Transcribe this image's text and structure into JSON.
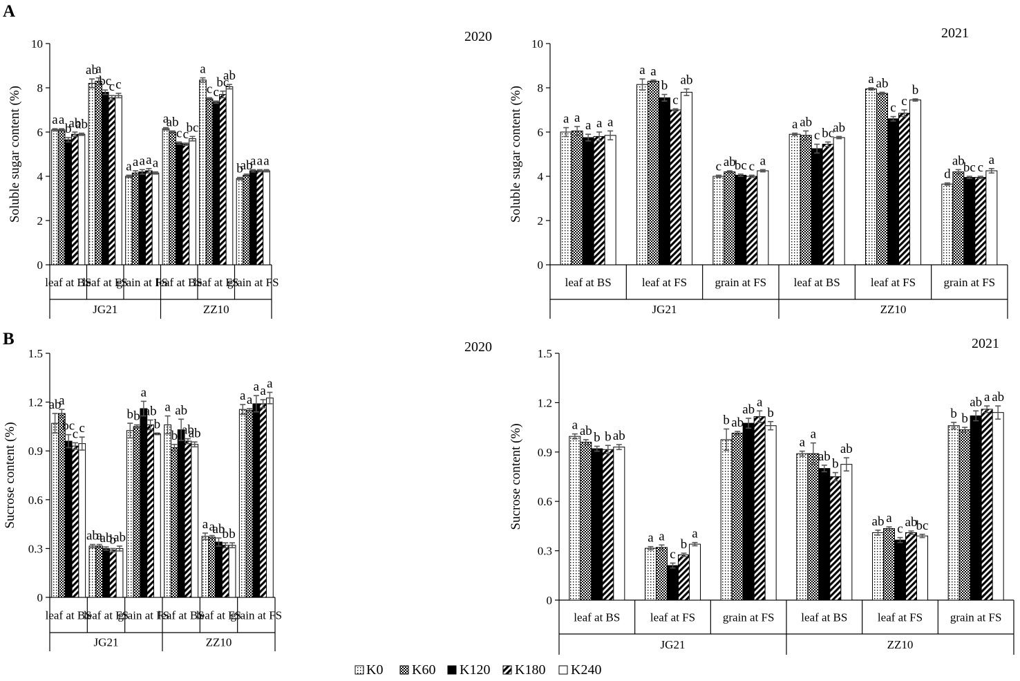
{
  "figure": {
    "panel_labels": [
      "A",
      "B"
    ],
    "legend": [
      {
        "key": "K0",
        "label": "K0",
        "pattern": "dots"
      },
      {
        "key": "K60",
        "label": "K60",
        "pattern": "checker"
      },
      {
        "key": "K120",
        "label": "K120",
        "pattern": "solid"
      },
      {
        "key": "K180",
        "label": "K180",
        "pattern": "diagonal"
      },
      {
        "key": "K240",
        "label": "K240",
        "pattern": "white"
      }
    ],
    "colors": {
      "ink": "#000000",
      "error_bar": "#555555",
      "background": "#ffffff"
    }
  },
  "chart_data": [
    {
      "id": "A-2020",
      "type": "bar",
      "year_label": "2020",
      "ylabel": "Soluble sugar content (%)",
      "ylim": [
        0,
        10
      ],
      "yticks": [
        "0",
        "2",
        "4",
        "6",
        "8",
        "10"
      ],
      "ytick_values": [
        0,
        2,
        4,
        6,
        8,
        10
      ],
      "categories": [
        "leaf at BS",
        "leaf at FS",
        "grain at FS",
        "leaf at BS",
        "leaf at FS",
        "grain at FS"
      ],
      "groups": [
        "JG21",
        "ZZ10"
      ],
      "series_names": [
        "K0",
        "K60",
        "K120",
        "K180",
        "K240"
      ],
      "values": [
        [
          6.1,
          6.1,
          5.65,
          5.9,
          5.9
        ],
        [
          8.2,
          8.3,
          7.8,
          7.55,
          7.65
        ],
        [
          4.0,
          4.15,
          4.2,
          4.25,
          4.15
        ],
        [
          6.15,
          6.0,
          5.5,
          5.45,
          5.7
        ],
        [
          8.35,
          7.5,
          7.35,
          7.7,
          8.05
        ],
        [
          3.9,
          4.05,
          4.25,
          4.25,
          4.25
        ]
      ],
      "errors": [
        [
          0.05,
          0.05,
          0.1,
          0.1,
          0.05
        ],
        [
          0.2,
          0.15,
          0.1,
          0.1,
          0.1
        ],
        [
          0.05,
          0.1,
          0.1,
          0.1,
          0.05
        ],
        [
          0.05,
          0.05,
          0.05,
          0.05,
          0.1
        ],
        [
          0.1,
          0.05,
          0.05,
          0.15,
          0.1
        ],
        [
          0.05,
          0.05,
          0.05,
          0.05,
          0.05
        ]
      ],
      "letters": [
        [
          "a",
          "a",
          "b",
          "ab",
          "ab"
        ],
        [
          "ab",
          "a",
          "bc",
          "c",
          "c"
        ],
        [
          "a",
          "a",
          "a",
          "a",
          "a"
        ],
        [
          "a",
          "ab",
          "c",
          "c",
          "bc"
        ],
        [
          "a",
          "c",
          "c",
          "bc",
          "ab"
        ],
        [
          "b",
          "ab",
          "a",
          "a",
          "a"
        ]
      ]
    },
    {
      "id": "A-2021",
      "type": "bar",
      "year_label": "2021",
      "ylabel": "Soluble sugar content (%)",
      "ylim": [
        0,
        10
      ],
      "yticks": [
        "0",
        "2",
        "4",
        "6",
        "8",
        "10"
      ],
      "ytick_values": [
        0,
        2,
        4,
        6,
        8,
        10
      ],
      "categories": [
        "leaf at BS",
        "leaf at FS",
        "grain at FS",
        "leaf at BS",
        "leaf at FS",
        "grain at FS"
      ],
      "groups": [
        "JG21",
        "ZZ10"
      ],
      "series_names": [
        "K0",
        "K60",
        "K120",
        "K180",
        "K240"
      ],
      "values": [
        [
          6.0,
          6.05,
          5.75,
          5.8,
          5.85
        ],
        [
          8.15,
          8.3,
          7.55,
          7.0,
          7.8
        ],
        [
          4.0,
          4.2,
          4.05,
          4.0,
          4.25
        ],
        [
          5.9,
          5.85,
          5.25,
          5.45,
          5.75
        ],
        [
          7.95,
          7.75,
          6.6,
          6.85,
          7.45
        ],
        [
          3.65,
          4.2,
          3.95,
          3.95,
          4.25
        ]
      ],
      "errors": [
        [
          0.2,
          0.2,
          0.15,
          0.2,
          0.2
        ],
        [
          0.25,
          0.05,
          0.15,
          0.05,
          0.15
        ],
        [
          0.05,
          0.05,
          0.05,
          0.05,
          0.05
        ],
        [
          0.05,
          0.2,
          0.2,
          0.1,
          0.05
        ],
        [
          0.05,
          0.05,
          0.1,
          0.15,
          0.05
        ],
        [
          0.05,
          0.1,
          0.05,
          0.05,
          0.1
        ]
      ],
      "letters": [
        [
          "a",
          "a",
          "a",
          "a",
          "a"
        ],
        [
          "a",
          "a",
          "b",
          "c",
          "ab"
        ],
        [
          "c",
          "ab",
          "bc",
          "c",
          "a"
        ],
        [
          "a",
          "ab",
          "c",
          "bc",
          "ab"
        ],
        [
          "a",
          "ab",
          "c",
          "c",
          "b"
        ],
        [
          "d",
          "ab",
          "bc",
          "c",
          "a"
        ]
      ]
    },
    {
      "id": "B-2020",
      "type": "bar",
      "year_label": "2020",
      "ylabel": "Sucrose content (%)",
      "ylim": [
        0,
        1.5
      ],
      "yticks": [
        "0",
        "0.3",
        "0.6",
        "0.9",
        "1.2",
        "1.5"
      ],
      "ytick_values": [
        0,
        0.3,
        0.6,
        0.9,
        1.2,
        1.5
      ],
      "categories": [
        "leaf at BS",
        "leaf at FS",
        "grain at FS",
        "leaf at BS",
        "leaf at FS",
        "grain at FS"
      ],
      "groups": [
        "JG21",
        "ZZ10"
      ],
      "series_names": [
        "K0",
        "K60",
        "K120",
        "K180",
        "K240"
      ],
      "values": [
        [
          1.07,
          1.13,
          0.96,
          0.93,
          0.945
        ],
        [
          0.315,
          0.315,
          0.3,
          0.29,
          0.3
        ],
        [
          1.025,
          1.05,
          1.16,
          1.06,
          1.005
        ],
        [
          1.06,
          0.92,
          1.03,
          0.96,
          0.94
        ],
        [
          0.375,
          0.37,
          0.34,
          0.32,
          0.32
        ],
        [
          1.155,
          1.15,
          1.19,
          1.19,
          1.225
        ]
      ],
      "errors": [
        [
          0.06,
          0.025,
          0.04,
          0.02,
          0.04
        ],
        [
          0.01,
          0.01,
          0.01,
          0.01,
          0.015
        ],
        [
          0.045,
          0.01,
          0.045,
          0.03,
          0.005
        ],
        [
          0.055,
          0.02,
          0.065,
          0.015,
          0.015
        ],
        [
          0.02,
          0.01,
          0.025,
          0.015,
          0.015
        ],
        [
          0.03,
          0.01,
          0.05,
          0.025,
          0.035
        ]
      ],
      "letters": [
        [
          "ab",
          "a",
          "bc",
          "c",
          "c"
        ],
        [
          "ab",
          "a",
          "ab",
          "b",
          "ab"
        ],
        [
          "b",
          "b",
          "a",
          "ab",
          "b"
        ],
        [
          "a",
          "b",
          "ab",
          "ab",
          "ab"
        ],
        [
          "a",
          "a",
          "ab",
          "b",
          "b"
        ],
        [
          "a",
          "a",
          "a",
          "a",
          "a"
        ]
      ]
    },
    {
      "id": "B-2021",
      "type": "bar",
      "year_label": "2021",
      "ylabel": "Sucrose content (%)",
      "ylim": [
        0,
        1.5
      ],
      "yticks": [
        "0",
        "0.3",
        "0.6",
        "0.9",
        "1.2",
        "1.5"
      ],
      "ytick_values": [
        0,
        0.3,
        0.6,
        0.9,
        1.2,
        1.5
      ],
      "categories": [
        "leaf at BS",
        "leaf at FS",
        "grain at FS",
        "leaf at BS",
        "leaf at FS",
        "grain at FS"
      ],
      "groups": [
        "JG21",
        "ZZ10"
      ],
      "series_names": [
        "K0",
        "K60",
        "K120",
        "K180",
        "K240"
      ],
      "values": [
        [
          0.995,
          0.96,
          0.92,
          0.915,
          0.93
        ],
        [
          0.315,
          0.32,
          0.21,
          0.275,
          0.34
        ],
        [
          0.975,
          1.015,
          1.075,
          1.115,
          1.06
        ],
        [
          0.89,
          0.89,
          0.8,
          0.75,
          0.825
        ],
        [
          0.41,
          0.435,
          0.365,
          0.41,
          0.39
        ],
        [
          1.06,
          1.035,
          1.12,
          1.16,
          1.14
        ]
      ],
      "errors": [
        [
          0.015,
          0.015,
          0.015,
          0.025,
          0.015
        ],
        [
          0.01,
          0.015,
          0.015,
          0.01,
          0.01
        ],
        [
          0.065,
          0.01,
          0.03,
          0.035,
          0.025
        ],
        [
          0.015,
          0.065,
          0.02,
          0.025,
          0.04
        ],
        [
          0.015,
          0.01,
          0.015,
          0.01,
          0.01
        ],
        [
          0.02,
          0.015,
          0.03,
          0.02,
          0.04
        ]
      ],
      "letters": [
        [
          "a",
          "ab",
          "b",
          "b",
          "ab"
        ],
        [
          "a",
          "a",
          "c",
          "b",
          "a"
        ],
        [
          "b",
          "ab",
          "ab",
          "a",
          "b"
        ],
        [
          "a",
          "a",
          "ab",
          "b",
          "ab"
        ],
        [
          "ab",
          "a",
          "c",
          "ab",
          "bc"
        ],
        [
          "b",
          "b",
          "ab",
          "a",
          "ab"
        ]
      ]
    }
  ]
}
